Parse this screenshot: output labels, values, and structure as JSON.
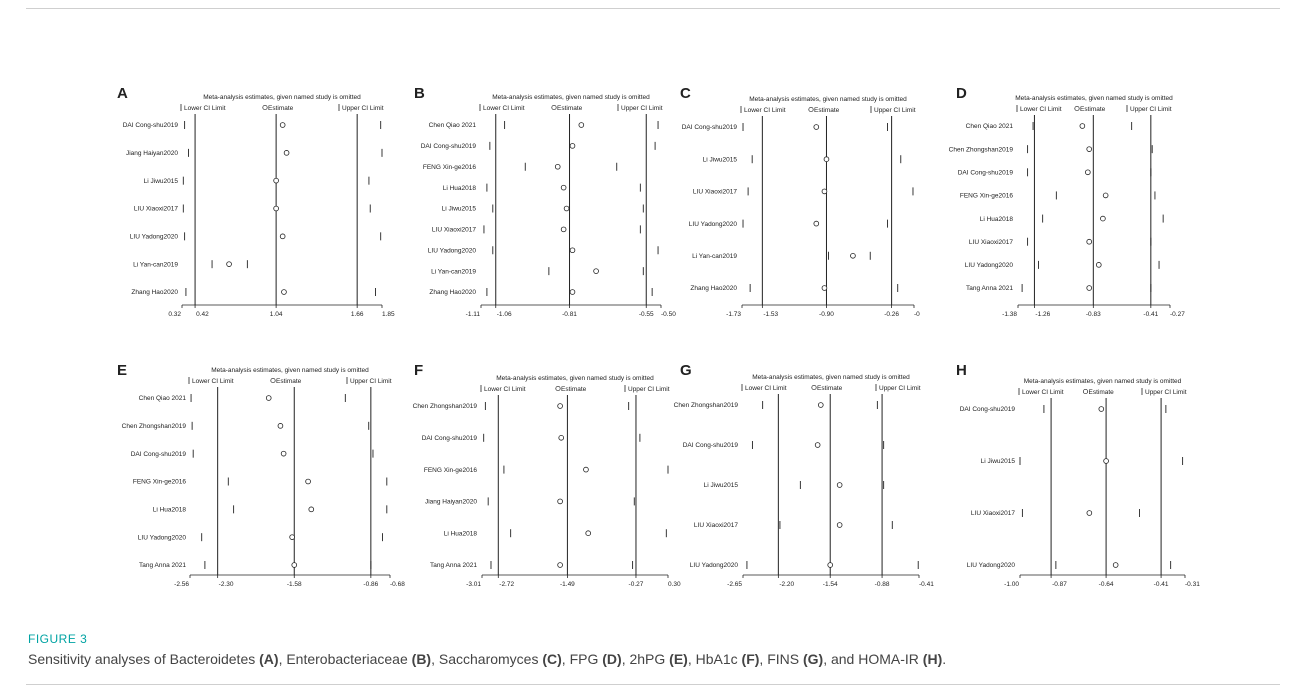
{
  "caption": {
    "figure_label": "FIGURE 3",
    "segments": [
      {
        "text": "Sensitivity analyses of Bacteroidetes ",
        "bold": false
      },
      {
        "text": "(A)",
        "bold": true
      },
      {
        "text": ", Enterobacteriaceae ",
        "bold": false
      },
      {
        "text": "(B)",
        "bold": true
      },
      {
        "text": ", Saccharomyces ",
        "bold": false
      },
      {
        "text": "(C)",
        "bold": true
      },
      {
        "text": ", FPG ",
        "bold": false
      },
      {
        "text": "(D)",
        "bold": true
      },
      {
        "text": ", 2hPG ",
        "bold": false
      },
      {
        "text": "(E)",
        "bold": true
      },
      {
        "text": ", HbA1c ",
        "bold": false
      },
      {
        "text": "(F)",
        "bold": true
      },
      {
        "text": ", FINS ",
        "bold": false
      },
      {
        "text": "(G)",
        "bold": true
      },
      {
        "text": ", and HOMA-IR ",
        "bold": false
      },
      {
        "text": "(H)",
        "bold": true
      },
      {
        "text": ".",
        "bold": false
      }
    ]
  },
  "colors": {
    "caption_label": "#00a3a3",
    "caption_text": "#444444",
    "plot_ink": "#222222"
  },
  "chart_data": [
    {
      "panel": "A",
      "type": "scatter",
      "header": "Meta-analysis estimates, given named study is omitted",
      "legend": [
        "Lower CI Limit",
        "Estimate",
        "Upper CI Limit"
      ],
      "ticks": [
        "0.32",
        "0.42",
        "1.04",
        "1.66",
        "1.85"
      ],
      "tick_values": [
        0.32,
        0.42,
        1.04,
        1.66,
        1.85
      ],
      "xlim": [
        0.32,
        1.85
      ],
      "ref_lines": [
        0.42,
        1.04,
        1.66
      ],
      "studies": [
        {
          "label": "DAI Cong-shu2019",
          "lower": 0.34,
          "est": 1.09,
          "upper": 1.84
        },
        {
          "label": "Jiang Haiyan2020",
          "lower": 0.37,
          "est": 1.12,
          "upper": 1.85
        },
        {
          "label": "Li Jiwu2015",
          "lower": 0.33,
          "est": 1.04,
          "upper": 1.75
        },
        {
          "label": "LIU Xiaoxi2017",
          "lower": 0.33,
          "est": 1.04,
          "upper": 1.76
        },
        {
          "label": "LIU Yadong2020",
          "lower": 0.34,
          "est": 1.09,
          "upper": 1.84
        },
        {
          "label": "Li Yan-can2019",
          "lower": 0.55,
          "est": 0.68,
          "upper": 0.82
        },
        {
          "label": "Zhang Hao2020",
          "lower": 0.35,
          "est": 1.1,
          "upper": 1.8
        }
      ]
    },
    {
      "panel": "B",
      "type": "scatter",
      "header": "Meta-analysis estimates, given named study is omitted",
      "legend": [
        "Lower CI Limit",
        "Estimate",
        "Upper CI Limit"
      ],
      "ticks": [
        "-1.11",
        "-1.06",
        "-0.81",
        "-0.55",
        "-0.50"
      ],
      "tick_values": [
        -1.11,
        -1.06,
        -0.81,
        -0.55,
        -0.5
      ],
      "xlim": [
        -1.11,
        -0.5
      ],
      "ref_lines": [
        -1.06,
        -0.81,
        -0.55
      ],
      "studies": [
        {
          "label": "Chen Qiao 2021",
          "lower": -1.03,
          "est": -0.77,
          "upper": -0.51
        },
        {
          "label": "DAI Cong-shu2019",
          "lower": -1.08,
          "est": -0.8,
          "upper": -0.52
        },
        {
          "label": "FENG Xin-ge2016",
          "lower": -0.96,
          "est": -0.85,
          "upper": -0.65
        },
        {
          "label": "Li Hua2018",
          "lower": -1.09,
          "est": -0.83,
          "upper": -0.57
        },
        {
          "label": "Li Jiwu2015",
          "lower": -1.07,
          "est": -0.82,
          "upper": -0.56
        },
        {
          "label": "LIU Xiaoxi2017",
          "lower": -1.1,
          "est": -0.83,
          "upper": -0.57
        },
        {
          "label": "LIU Yadong2020",
          "lower": -1.07,
          "est": -0.8,
          "upper": -0.51
        },
        {
          "label": "Li Yan-can2019",
          "lower": -0.88,
          "est": -0.72,
          "upper": -0.56
        },
        {
          "label": "Zhang Hao2020",
          "lower": -1.09,
          "est": -0.8,
          "upper": -0.53
        }
      ]
    },
    {
      "panel": "C",
      "type": "scatter",
      "header": "Meta-analysis estimates, given named study is omitted",
      "legend": [
        "Lower CI Limit",
        "Estimate",
        "Upper CI Limit"
      ],
      "ticks": [
        "-1.73",
        "-1.53",
        "-0.90",
        "-0.26",
        "-0"
      ],
      "tick_values": [
        -1.73,
        -1.53,
        -0.9,
        -0.26,
        -0.04
      ],
      "xlim": [
        -1.73,
        -0.04
      ],
      "ref_lines": [
        -1.53,
        -0.9,
        -0.26
      ],
      "studies": [
        {
          "label": "DAI Cong-shu2019",
          "lower": -1.72,
          "est": -1.0,
          "upper": -0.3
        },
        {
          "label": "Li Jiwu2015",
          "lower": -1.63,
          "est": -0.9,
          "upper": -0.17
        },
        {
          "label": "LIU Xiaoxi2017",
          "lower": -1.67,
          "est": -0.92,
          "upper": -0.05
        },
        {
          "label": "LIU Yadong2020",
          "lower": -1.72,
          "est": -1.0,
          "upper": -0.3
        },
        {
          "label": "Li Yan-can2019",
          "lower": -0.88,
          "est": -0.64,
          "upper": -0.47
        },
        {
          "label": "Zhang Hao2020",
          "lower": -1.65,
          "est": -0.92,
          "upper": -0.2
        }
      ]
    },
    {
      "panel": "D",
      "type": "scatter",
      "header": "Meta-analysis estimates, given named study is omitted",
      "legend": [
        "Lower CI Limit",
        "Estimate",
        "Upper CI Limit"
      ],
      "ticks": [
        "-1.38",
        "-1.26",
        "-0.83",
        "-0.41",
        "-0.27"
      ],
      "tick_values": [
        -1.38,
        -1.26,
        -0.83,
        -0.41,
        -0.27
      ],
      "xlim": [
        -1.38,
        -0.27
      ],
      "ref_lines": [
        -1.26,
        -0.83,
        -0.41
      ],
      "studies": [
        {
          "label": "Chen Qiao 2021",
          "lower": -1.27,
          "est": -0.91,
          "upper": -0.55
        },
        {
          "label": "Chen Zhongshan2019",
          "lower": -1.31,
          "est": -0.86,
          "upper": -0.4
        },
        {
          "label": "DAI Cong-shu2019",
          "lower": -1.31,
          "est": -0.87,
          "upper": -0.41
        },
        {
          "label": "FENG Xin-ge2016",
          "lower": -1.1,
          "est": -0.74,
          "upper": -0.38
        },
        {
          "label": "Li Hua2018",
          "lower": -1.2,
          "est": -0.76,
          "upper": -0.32
        },
        {
          "label": "LIU Xiaoxi2017",
          "lower": -1.31,
          "est": -0.86,
          "upper": -0.41
        },
        {
          "label": "LIU Yadong2020",
          "lower": -1.23,
          "est": -0.79,
          "upper": -0.35
        },
        {
          "label": "Tang Anna 2021",
          "lower": -1.35,
          "est": -0.86,
          "upper": -0.41
        }
      ]
    },
    {
      "panel": "E",
      "type": "scatter",
      "header": "Meta-analysis estimates, given named study is omitted",
      "legend": [
        "Lower CI Limit",
        "Estimate",
        "Upper CI Limit"
      ],
      "ticks": [
        "-2.56",
        "-2.30",
        "-1.58",
        "-0.86",
        "-0.68"
      ],
      "tick_values": [
        -2.56,
        -2.3,
        -1.58,
        -0.86,
        -0.68
      ],
      "xlim": [
        -2.56,
        -0.68
      ],
      "ref_lines": [
        -2.3,
        -1.58,
        -0.86
      ],
      "studies": [
        {
          "label": "Chen Qiao 2021",
          "lower": -2.55,
          "est": -1.82,
          "upper": -1.1
        },
        {
          "label": "Chen Zhongshan2019",
          "lower": -2.54,
          "est": -1.71,
          "upper": -0.88
        },
        {
          "label": "DAI Cong-shu2019",
          "lower": -2.53,
          "est": -1.68,
          "upper": -0.84
        },
        {
          "label": "FENG Xin-ge2016",
          "lower": -2.2,
          "est": -1.45,
          "upper": -0.71
        },
        {
          "label": "Li Hua2018",
          "lower": -2.15,
          "est": -1.42,
          "upper": -0.71
        },
        {
          "label": "LIU Yadong2020",
          "lower": -2.45,
          "est": -1.6,
          "upper": -0.75
        },
        {
          "label": "Tang Anna 2021",
          "lower": -2.42,
          "est": -1.58,
          "upper": -0.86
        }
      ]
    },
    {
      "panel": "F",
      "type": "scatter",
      "header": "Meta-analysis estimates, given named study is omitted",
      "legend": [
        "Lower CI Limit",
        "Estimate",
        "Upper CI Limit"
      ],
      "ticks": [
        "-3.01",
        "-2.72",
        "-1.49",
        "-0.27",
        "0.30"
      ],
      "tick_values": [
        -3.01,
        -2.72,
        -1.49,
        -0.27,
        0.3
      ],
      "xlim": [
        -3.01,
        0.3
      ],
      "ref_lines": [
        -2.72,
        -1.49,
        -0.27
      ],
      "studies": [
        {
          "label": "Chen Zhongshan2019",
          "lower": -2.95,
          "est": -1.62,
          "upper": -0.4
        },
        {
          "label": "DAI Cong-shu2019",
          "lower": -2.98,
          "est": -1.6,
          "upper": -0.2
        },
        {
          "label": "FENG Xin-ge2016",
          "lower": -2.62,
          "est": -1.16,
          "upper": 0.3
        },
        {
          "label": "Jiang Haiyan2020",
          "lower": -2.9,
          "est": -1.62,
          "upper": -0.3
        },
        {
          "label": "Li Hua2018",
          "lower": -2.5,
          "est": -1.12,
          "upper": 0.27
        },
        {
          "label": "Tang Anna 2021",
          "lower": -2.85,
          "est": -1.62,
          "upper": -0.33
        }
      ]
    },
    {
      "panel": "G",
      "type": "scatter",
      "header": "Meta-analysis estimates, given named study is omitted",
      "legend": [
        "Lower CI Limit",
        "Estimate",
        "Upper CI Limit"
      ],
      "ticks": [
        "-2.65",
        "-2.20",
        "-1.54",
        "-0.88",
        "-0.41"
      ],
      "tick_values": [
        -2.65,
        -2.2,
        -1.54,
        -0.88,
        -0.41
      ],
      "xlim": [
        -2.65,
        -0.41
      ],
      "ref_lines": [
        -2.2,
        -1.54,
        -0.88
      ],
      "studies": [
        {
          "label": "Chen Zhongshan2019",
          "lower": -2.4,
          "est": -1.66,
          "upper": -0.94
        },
        {
          "label": "DAI Cong-shu2019",
          "lower": -2.53,
          "est": -1.7,
          "upper": -0.86
        },
        {
          "label": "Li Jiwu2015",
          "lower": -1.92,
          "est": -1.42,
          "upper": -0.86
        },
        {
          "label": "LIU Xiaoxi2017",
          "lower": -2.18,
          "est": -1.42,
          "upper": -0.75
        },
        {
          "label": "LIU Yadong2020",
          "lower": -2.6,
          "est": -1.54,
          "upper": -0.42
        }
      ]
    },
    {
      "panel": "H",
      "type": "scatter",
      "header": "Meta-analysis estimates, given named study is omitted",
      "legend": [
        "Lower CI Limit",
        "Estimate",
        "Upper CI Limit"
      ],
      "ticks": [
        "-1.00",
        "-0.87",
        "-0.64",
        "-0.41",
        "-0.31"
      ],
      "tick_values": [
        -1.0,
        -0.87,
        -0.64,
        -0.41,
        -0.31
      ],
      "xlim": [
        -1.0,
        -0.31
      ],
      "ref_lines": [
        -0.87,
        -0.64,
        -0.41
      ],
      "studies": [
        {
          "label": "DAI Cong-shu2019",
          "lower": -0.9,
          "est": -0.66,
          "upper": -0.39
        },
        {
          "label": "Li Jiwu2015",
          "lower": -1.0,
          "est": -0.64,
          "upper": -0.32
        },
        {
          "label": "LIU Xiaoxi2017",
          "lower": -0.99,
          "est": -0.71,
          "upper": -0.5
        },
        {
          "label": "LIU Yadong2020",
          "lower": -0.85,
          "est": -0.6,
          "upper": -0.37
        }
      ]
    }
  ]
}
